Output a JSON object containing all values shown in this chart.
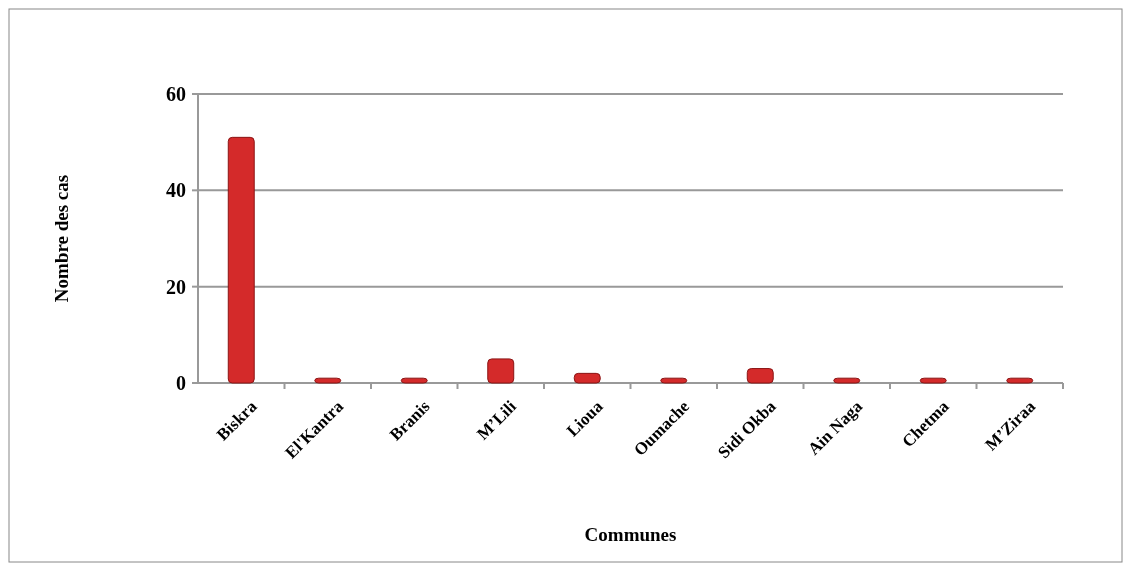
{
  "chart_data": {
    "type": "bar",
    "xlabel": "Communes",
    "ylabel": "Nombre des cas",
    "categories": [
      "Biskra",
      "El'Kantra",
      "Branis",
      "M’Lili",
      "Lioua",
      "Oumache",
      "Sidi Okba",
      "Ain Naga",
      "Chetma",
      "M’Ziraa"
    ],
    "values": [
      51,
      1,
      1,
      5,
      2,
      1,
      3,
      1,
      1,
      1
    ],
    "color": "#d42a2a",
    "ylim": [
      0,
      60
    ],
    "yticks": [
      0,
      20,
      40,
      60
    ],
    "grid": "y"
  }
}
